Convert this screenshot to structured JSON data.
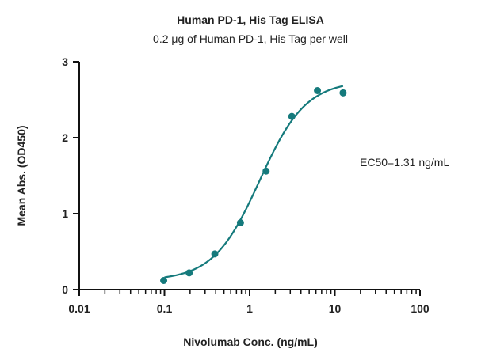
{
  "chart_data": {
    "type": "scatter",
    "title": "Human PD-1, His Tag ELISA",
    "subtitle": "0.2 μg of Human PD-1, His Tag per well",
    "xlabel": "Nivolumab Conc. (ng/mL)",
    "ylabel": "Mean Abs. (OD450)",
    "xscale": "log",
    "xlim": [
      0.01,
      100
    ],
    "ylim": [
      0,
      3
    ],
    "x_ticks": [
      0.01,
      0.1,
      1,
      10,
      100
    ],
    "x_tick_labels": [
      "0.01",
      "0.1",
      "1",
      "10",
      "100"
    ],
    "y_ticks": [
      0,
      1,
      2,
      3
    ],
    "y_tick_labels": [
      "0",
      "1",
      "2",
      "3"
    ],
    "grid": false,
    "color": "#157a7c",
    "series": [
      {
        "x": [
          0.098,
          0.195,
          0.39,
          0.78,
          1.56,
          3.13,
          6.25,
          12.5
        ],
        "y": [
          0.12,
          0.22,
          0.47,
          0.88,
          1.56,
          2.28,
          2.62,
          2.59
        ]
      }
    ],
    "fit": {
      "model": "4PL",
      "bottom": 0.12,
      "top": 2.75,
      "ec50": 1.31,
      "hill": 1.6,
      "x_range": [
        0.1,
        12.5
      ]
    },
    "annotations": [
      {
        "text": "EC50=1.31 ng/mL"
      }
    ]
  }
}
